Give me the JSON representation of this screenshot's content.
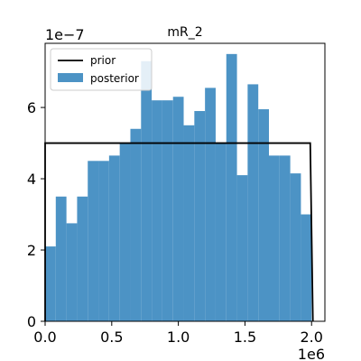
{
  "chart_data": {
    "type": "bar",
    "title": "mR_2",
    "xlim": [
      0,
      2100000
    ],
    "ylim": [
      0,
      7.8e-07
    ],
    "x_ticks": [
      {
        "value": 0,
        "label": "0.0"
      },
      {
        "value": 500000,
        "label": "0.5"
      },
      {
        "value": 1000000,
        "label": "1.0"
      },
      {
        "value": 1500000,
        "label": "1.5"
      },
      {
        "value": 2000000,
        "label": "2.0"
      }
    ],
    "y_ticks": [
      {
        "value": 0,
        "label": "0"
      },
      {
        "value": 2e-07,
        "label": "2"
      },
      {
        "value": 4e-07,
        "label": "4"
      },
      {
        "value": 6e-07,
        "label": "6"
      }
    ],
    "x_offset_label": "1e6",
    "y_offset_label": "1e−7",
    "legend": {
      "placement": "upper-left",
      "entries": [
        {
          "label": "prior",
          "kind": "line",
          "color": "#000000"
        },
        {
          "label": "posterior",
          "kind": "patch",
          "color": "#4c93c5"
        }
      ]
    },
    "posterior": {
      "name": "posterior",
      "color": "#4c93c5",
      "bin_edges": [
        0,
        80000,
        160000,
        240000,
        320000,
        400000,
        480000,
        560000,
        640000,
        720000,
        800000,
        880000,
        960000,
        1040000,
        1120000,
        1200000,
        1280000,
        1360000,
        1440000,
        1520000,
        1600000,
        1680000,
        1760000,
        1840000,
        1920000,
        2000000
      ],
      "values": [
        2.1e-07,
        3.5e-07,
        2.75e-07,
        3.5e-07,
        4.5e-07,
        4.5e-07,
        4.65e-07,
        5e-07,
        5.4e-07,
        7.3e-07,
        6.2e-07,
        6.2e-07,
        6.3e-07,
        5.5e-07,
        5.9e-07,
        6.55e-07,
        5e-07,
        7.5e-07,
        4.1e-07,
        6.65e-07,
        5.95e-07,
        4.65e-07,
        4.65e-07,
        4.15e-07,
        3e-07
      ]
    },
    "prior": {
      "name": "prior",
      "color": "#000000",
      "x": [
        0,
        0,
        1990000,
        2010000
      ],
      "y": [
        0,
        5e-07,
        5e-07,
        0
      ]
    }
  }
}
